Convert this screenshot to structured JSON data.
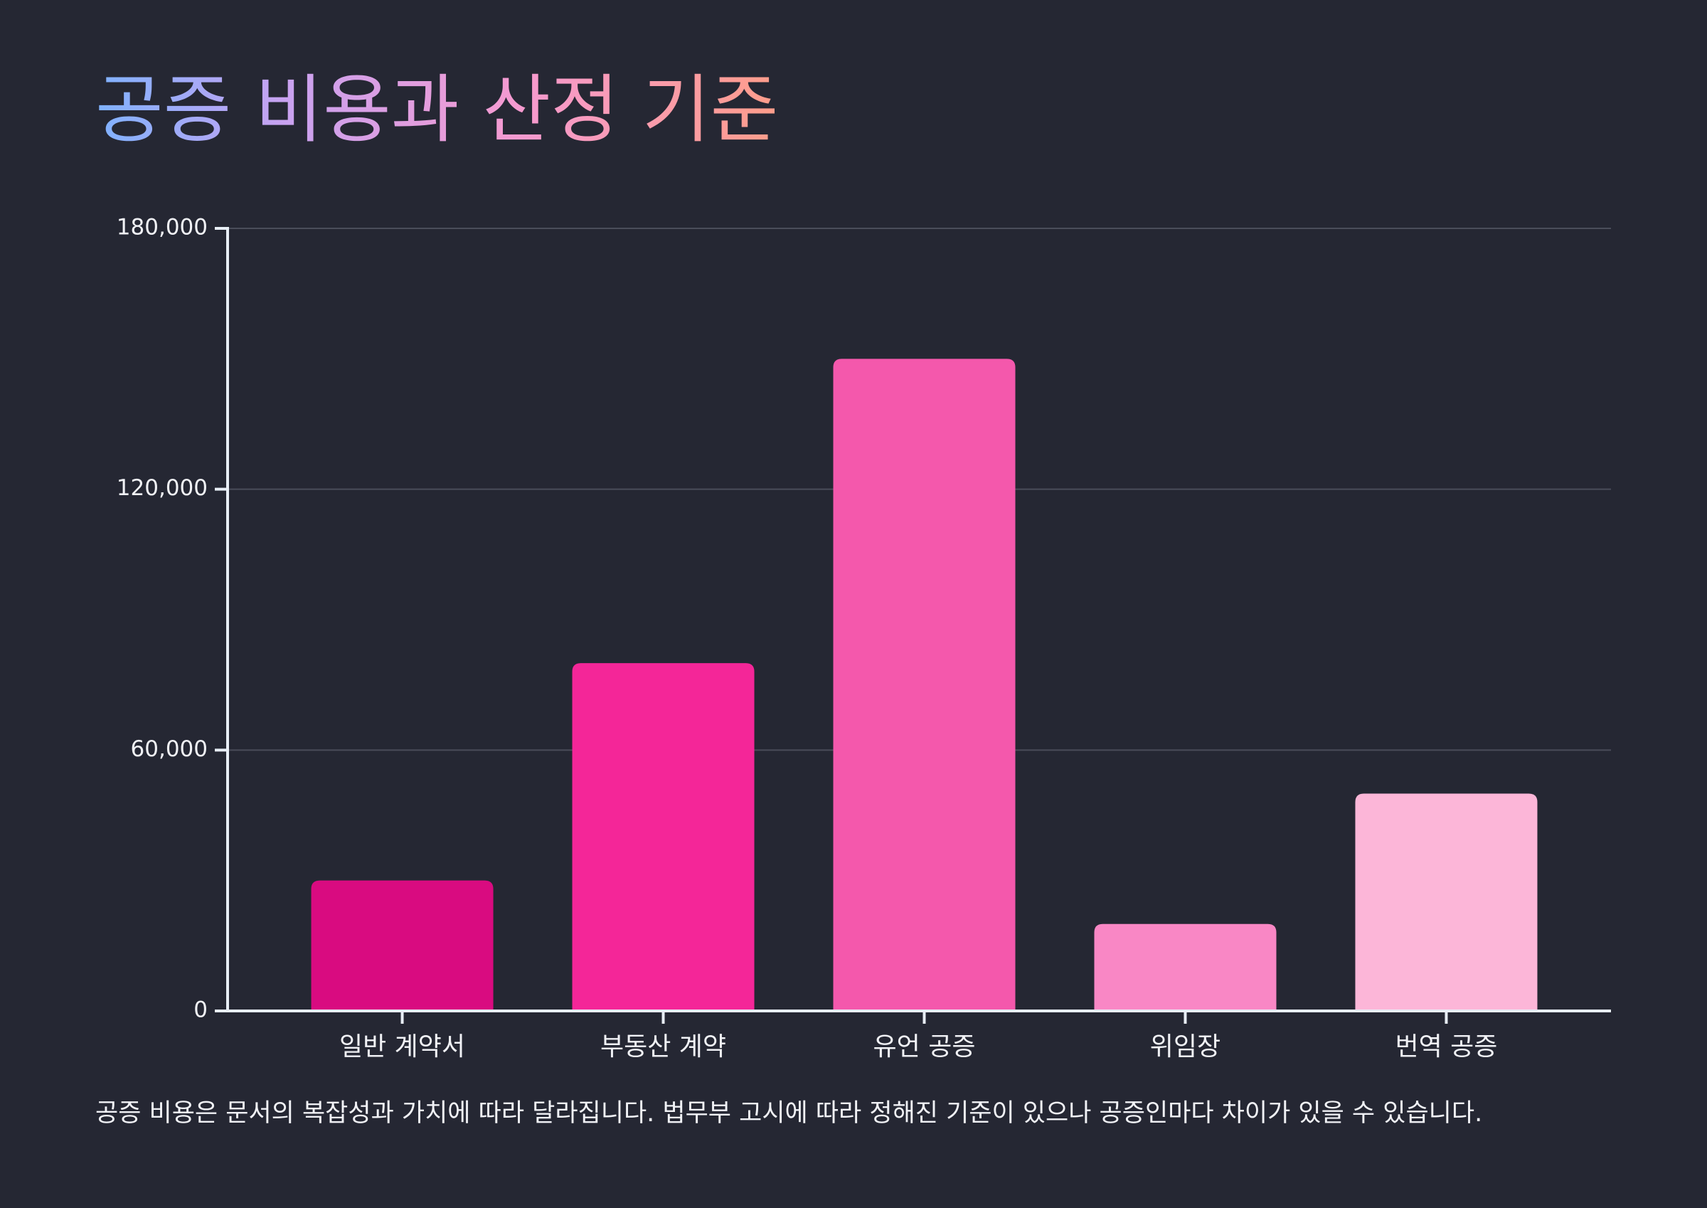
{
  "chart_data": {
    "type": "bar",
    "title": "공증 비용과 산정 기준",
    "categories": [
      "일반 계약서",
      "부동산 계약",
      "유언 공증",
      "위임장",
      "번역 공증"
    ],
    "values": [
      30000,
      80000,
      150000,
      20000,
      50000
    ],
    "colors": [
      "#d90b80",
      "#f42698",
      "#f458ac",
      "#f987c5",
      "#fcb6d8"
    ],
    "ylim": [
      0,
      180000
    ],
    "yticks": [
      0,
      60000,
      120000,
      180000
    ],
    "ytick_labels": [
      "0",
      "60,000",
      "120,000",
      "180,000"
    ],
    "grid": true,
    "legend": false,
    "footnote": "공증 비용은 문서의 복잡성과 가치에 따라 달라집니다. 법무부 고시에 따라 정해진 기준이 있으나 공증인마다 차이가 있을 수 있습니다."
  }
}
